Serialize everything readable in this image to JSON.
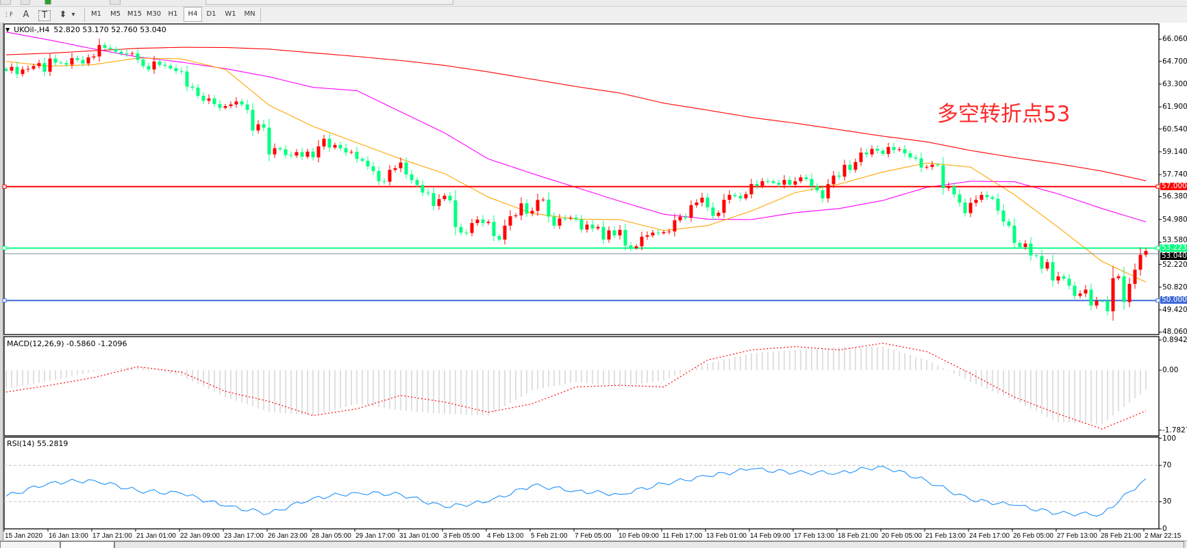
{
  "toolbar": {
    "tools": [
      {
        "name": "fibo-fan-icon",
        "glyph": "⋮F"
      },
      {
        "name": "text-icon",
        "glyph": "A"
      },
      {
        "name": "text-label-icon",
        "glyph": "T"
      },
      {
        "name": "arrows-icon",
        "glyph": "⬍"
      },
      {
        "name": "dropdown-icon",
        "glyph": "▾"
      }
    ],
    "periods": [
      "M1",
      "M5",
      "M15",
      "M30",
      "H1",
      "H4",
      "D1",
      "W1",
      "MN"
    ],
    "selected_period": "H4"
  },
  "chart": {
    "symbol": "UKOil-,H4",
    "ohlc": "52.820 53.170 52.760 53.040",
    "annotation": "多空转折点53",
    "price_axis": [
      "66.060",
      "64.700",
      "63.300",
      "61.900",
      "60.540",
      "59.140",
      "57.740",
      "56.380",
      "54.980",
      "53.580",
      "52.220",
      "50.820",
      "49.420",
      "48.060"
    ],
    "colors": {
      "up": "#ff0000",
      "down": "#00ff7f"
    },
    "hlines": [
      {
        "price": 57.0,
        "label": "57.000",
        "color": "#ff0000"
      },
      {
        "price": 53.223,
        "label": "53.223",
        "color": "#00ff7f"
      },
      {
        "price": 50.0,
        "label": "50.000",
        "color": "#3e6ad8"
      }
    ],
    "bid": {
      "price": 53.04,
      "label": "53.040",
      "color": "#778899"
    },
    "closes": [
      64.13,
      64.36,
      63.92,
      64.2,
      64.24,
      64.41,
      64.59,
      64.06,
      64.87,
      64.62,
      64.59,
      64.5,
      64.9,
      64.79,
      64.57,
      64.94,
      65.0,
      65.7,
      65.53,
      65.46,
      65.29,
      65.18,
      65.14,
      65.18,
      64.8,
      64.41,
      64.2,
      64.69,
      64.48,
      64.43,
      64.27,
      64.1,
      64.07,
      63.15,
      63.08,
      62.58,
      62.28,
      62.42,
      62.07,
      61.84,
      61.95,
      62.05,
      62.23,
      62.05,
      61.72,
      60.45,
      60.83,
      60.62,
      58.98,
      59.36,
      59.29,
      58.94,
      58.91,
      59.12,
      58.84,
      59.15,
      58.8,
      59.47,
      59.94,
      59.4,
      59.56,
      59.36,
      59.1,
      59.14,
      58.7,
      58.59,
      58.24,
      57.96,
      57.33,
      57.3,
      58.03,
      58.13,
      58.48,
      57.75,
      57.4,
      57.1,
      56.63,
      56.6,
      55.81,
      56.23,
      56.44,
      56.16,
      54.52,
      54.17,
      54.15,
      54.76,
      54.97,
      54.76,
      54.83,
      53.96,
      53.74,
      54.6,
      55.18,
      55.23,
      55.97,
      55.34,
      55.51,
      56.18,
      56.2,
      55.16,
      54.6,
      55.04,
      55.04,
      55.09,
      54.99,
      54.36,
      54.66,
      54.43,
      54.52,
      53.75,
      54.31,
      54.0,
      54.34,
      53.38,
      53.22,
      53.33,
      53.92,
      54.0,
      54.17,
      54.13,
      54.2,
      54.24,
      54.93,
      55.15,
      55.08,
      55.86,
      56.02,
      56.32,
      55.72,
      55.2,
      55.39,
      56.19,
      56.49,
      56.42,
      56.28,
      56.53,
      57.16,
      57.05,
      57.33,
      57.33,
      57.23,
      57.12,
      57.41,
      57.12,
      57.33,
      57.57,
      57.47,
      57.02,
      56.77,
      56.28,
      57.15,
      57.68,
      57.61,
      58.34,
      58.03,
      58.51,
      59.09,
      58.98,
      59.32,
      59.21,
      59.01,
      59.43,
      59.25,
      59.3,
      59.05,
      58.8,
      58.73,
      58.17,
      58.21,
      58.35,
      58.31,
      56.91,
      57.01,
      56.52,
      56.02,
      55.37,
      56.0,
      56.19,
      56.49,
      56.35,
      56.25,
      55.53,
      54.85,
      54.6,
      53.54,
      53.29,
      53.5,
      52.77,
      52.73,
      51.96,
      52.35,
      51.23,
      51.48,
      51.34,
      50.91,
      50.28,
      50.43,
      50.67,
      49.69,
      49.97,
      49.97,
      49.34,
      51.37,
      51.48,
      49.9,
      51.02,
      51.89,
      52.81,
      53.04
    ],
    "moving_averages": [
      {
        "color": "#ff0000",
        "values": [
          65.1,
          65.2,
          65.35,
          65.5,
          65.56,
          65.55,
          65.45,
          65.22,
          65.0,
          64.75,
          64.45,
          64.05,
          63.6,
          63.15,
          62.75,
          62.13,
          61.7,
          61.25,
          60.9,
          60.5,
          60.1,
          59.75,
          59.22,
          58.78,
          58.4,
          57.95,
          57.36
        ]
      },
      {
        "color": "#ff00ff",
        "values": [
          66.5,
          66.0,
          65.46,
          64.97,
          64.65,
          64.25,
          63.75,
          63.1,
          62.9,
          61.6,
          60.3,
          58.7,
          57.8,
          56.95,
          56.1,
          55.3,
          55.0,
          54.97,
          55.4,
          55.65,
          56.15,
          56.95,
          57.33,
          57.3,
          56.55,
          55.65,
          54.83
        ]
      },
      {
        "color": "#ffa500",
        "values": [
          64.69,
          64.4,
          64.5,
          64.9,
          64.85,
          64.2,
          62.0,
          60.7,
          59.7,
          58.7,
          57.8,
          56.35,
          55.35,
          55.0,
          54.97,
          54.3,
          54.6,
          55.5,
          56.63,
          57.15,
          57.9,
          58.45,
          58.2,
          56.5,
          54.5,
          52.4,
          51.13
        ]
      }
    ]
  },
  "macd": {
    "label": "MACD(12,26,9) -0.5860 -1.2096",
    "axis": [
      "0.8942",
      "0.00",
      "-1.7827"
    ],
    "main": [
      -0.55,
      -0.32,
      -0.04,
      0.12,
      -0.18,
      -0.8,
      -1.24,
      -1.35,
      -1.0,
      -1.2,
      -1.3,
      -1.35,
      -0.6,
      -0.35,
      -0.5,
      -0.3,
      0.2,
      0.5,
      0.6,
      0.68,
      0.7,
      0.3,
      -0.35,
      -0.9,
      -1.55,
      -1.6,
      -0.586
    ],
    "signal": [
      -0.65,
      -0.45,
      -0.22,
      0.1,
      -0.06,
      -0.63,
      -0.93,
      -1.35,
      -1.15,
      -0.75,
      -0.95,
      -1.25,
      -1.0,
      -0.5,
      -0.45,
      -0.5,
      0.3,
      0.6,
      0.7,
      0.6,
      0.8,
      0.55,
      -0.1,
      -0.8,
      -1.3,
      -1.75,
      -1.2096
    ],
    "colors": {
      "histogram": "#c0c0c0",
      "signal": "#ff0000"
    }
  },
  "rsi": {
    "label": "RSI(14) 55.2819",
    "axis": [
      "100",
      "70",
      "30",
      "0"
    ],
    "levels": [
      70,
      30
    ],
    "values": [
      36,
      51,
      53.6,
      42,
      39,
      25,
      17,
      34,
      40,
      38,
      24,
      30,
      48,
      42,
      38,
      50,
      58,
      66,
      62,
      62,
      69,
      53,
      32,
      26,
      17,
      16,
      55.28
    ],
    "color": "#1e90ff"
  },
  "time_axis": [
    "15 Jan 2020",
    "16 Jan 13:00",
    "17 Jan 21:00",
    "21 Jan 01:00",
    "22 Jan 09:00",
    "23 Jan 17:00",
    "26 Jan 23:00",
    "28 Jan 05:00",
    "29 Jan 17:00",
    "31 Jan 01:00",
    "3 Feb 05:00",
    "4 Feb 13:00",
    "5 Feb 21:00",
    "7 Feb 05:00",
    "10 Feb 09:00",
    "11 Feb 17:00",
    "13 Feb 01:00",
    "14 Feb 09:00",
    "17 Feb 13:00",
    "18 Feb 21:00",
    "20 Feb 05:00",
    "21 Feb 13:00",
    "24 Feb 17:00",
    "26 Feb 05:00",
    "27 Feb 13:00",
    "28 Feb 21:00",
    "2 Mar 22:15"
  ]
}
